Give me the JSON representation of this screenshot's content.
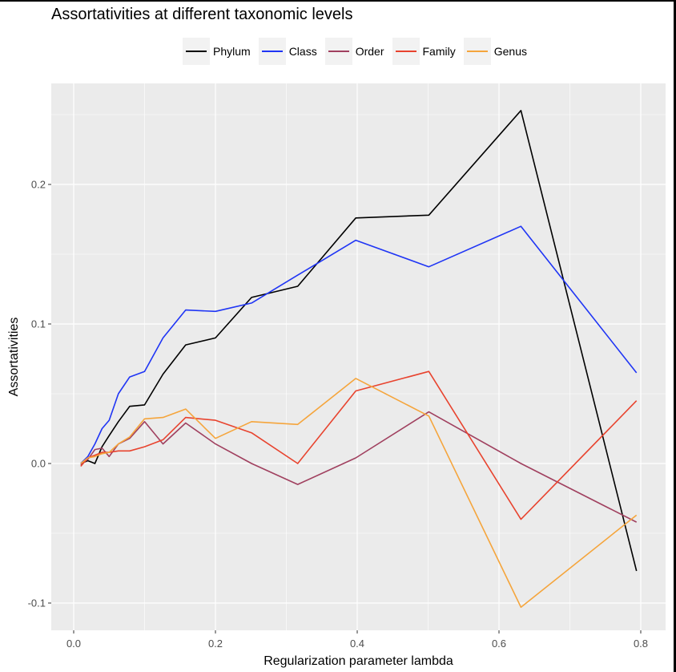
{
  "chart_data": {
    "type": "line",
    "title": "Assortativities at different taxonomic levels",
    "xlabel": "Regularization parameter lambda",
    "ylabel": "Assortativities",
    "xlim": [
      -0.01,
      0.81
    ],
    "ylim": [
      -0.12,
      0.27
    ],
    "xticks": [
      0.0,
      0.2,
      0.4,
      0.6,
      0.8
    ],
    "xtick_labels": [
      "0.0",
      "0.2",
      "0.4",
      "0.6",
      "0.8"
    ],
    "yticks": [
      -0.1,
      0.0,
      0.1,
      0.2
    ],
    "ytick_labels": [
      "-0.1",
      "0.0",
      "0.1",
      "0.2"
    ],
    "grid": true,
    "legend_position": "top",
    "x": [
      0.01,
      0.02,
      0.03,
      0.04,
      0.05,
      0.063,
      0.079,
      0.1,
      0.126,
      0.158,
      0.2,
      0.251,
      0.316,
      0.398,
      0.501,
      0.631,
      0.794
    ],
    "series": [
      {
        "name": "Phylum",
        "color": "#000000",
        "values": [
          0.0,
          0.002,
          0.0,
          0.012,
          0.02,
          0.03,
          0.041,
          0.042,
          0.064,
          0.085,
          0.09,
          0.119,
          0.127,
          0.176,
          0.178,
          0.253,
          -0.077
        ]
      },
      {
        "name": "Class",
        "color": "#1f35f5",
        "values": [
          0.0,
          0.005,
          0.014,
          0.025,
          0.031,
          0.05,
          0.062,
          0.066,
          0.09,
          0.11,
          0.109,
          0.115,
          0.135,
          0.16,
          0.141,
          0.17,
          0.065
        ]
      },
      {
        "name": "Order",
        "color": "#a0405f",
        "values": [
          -0.001,
          0.003,
          0.01,
          0.011,
          0.005,
          0.014,
          0.018,
          0.03,
          0.014,
          0.029,
          0.014,
          0.0,
          -0.015,
          0.004,
          0.037,
          0.0,
          -0.042
        ]
      },
      {
        "name": "Family",
        "color": "#e8432e",
        "values": [
          -0.002,
          0.004,
          0.006,
          0.008,
          0.008,
          0.009,
          0.009,
          0.012,
          0.017,
          0.033,
          0.031,
          0.022,
          0.0,
          0.052,
          0.066,
          -0.04,
          0.045
        ]
      },
      {
        "name": "Genus",
        "color": "#f5a53c",
        "values": [
          0.0,
          0.004,
          0.005,
          0.007,
          0.008,
          0.014,
          0.019,
          0.032,
          0.033,
          0.039,
          0.018,
          0.03,
          0.028,
          0.061,
          0.034,
          -0.103,
          -0.037
        ]
      }
    ]
  },
  "colors": {
    "panel_background": "#ebebeb",
    "grid": "#ffffff",
    "legend_key_background": "#f2f2f2"
  }
}
